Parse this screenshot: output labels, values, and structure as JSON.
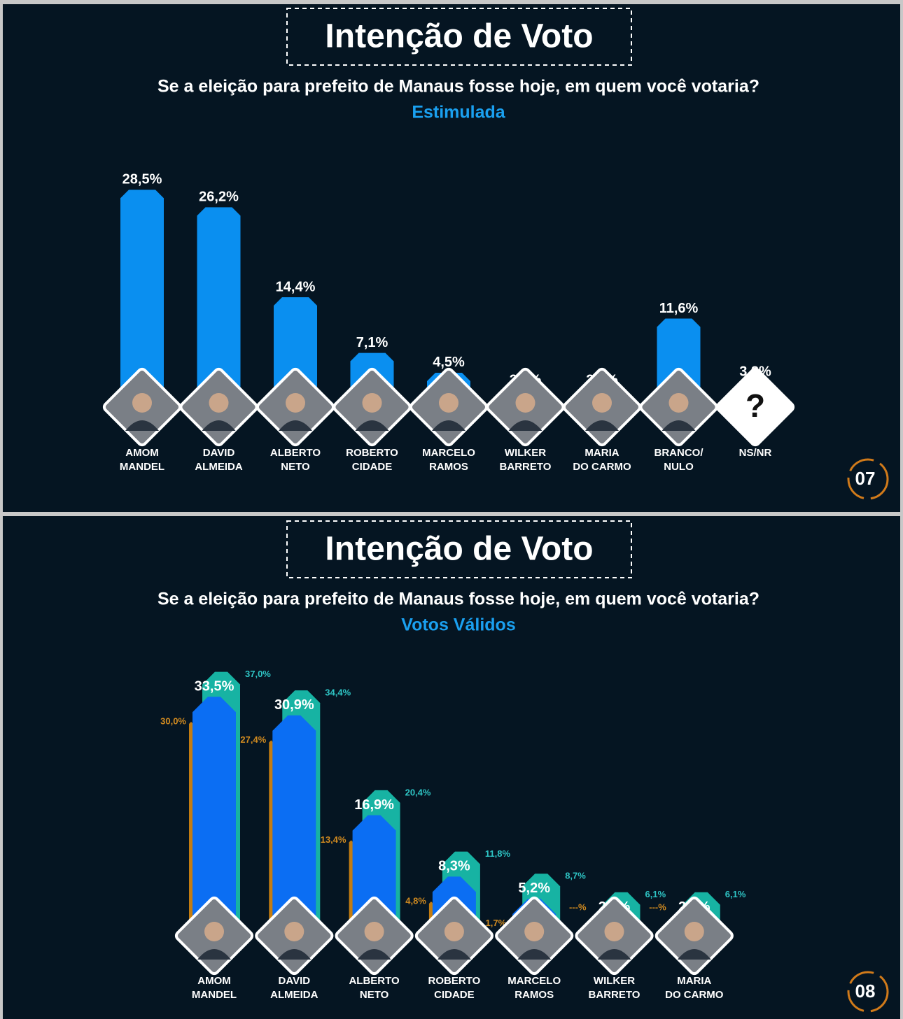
{
  "chart_data": [
    {
      "type": "bar",
      "title": "Intenção de Voto",
      "subtitle": "Se a eleição para prefeito de Manaus fosse hoje, em quem você votaria?",
      "label": "Estimulada",
      "categories": [
        [
          "AMOM",
          "MANDEL"
        ],
        [
          "DAVID",
          "ALMEIDA"
        ],
        [
          "ALBERTO",
          "NETO"
        ],
        [
          "ROBERTO",
          "CIDADE"
        ],
        [
          "MARCELO",
          "RAMOS"
        ],
        [
          "WILKER",
          "BARRETO"
        ],
        [
          "MARIA",
          "DO CARMO"
        ],
        [
          "BRANCO/",
          "NULO"
        ],
        [
          "NS/NR"
        ]
      ],
      "values": [
        28.5,
        26.2,
        14.4,
        7.1,
        4.5,
        2.2,
        2.2,
        11.6,
        3.3
      ],
      "value_labels": [
        "28,5%",
        "26,2%",
        "14,4%",
        "7,1%",
        "4,5%",
        "2,2%",
        "2,2%",
        "11,6%",
        "3,3%"
      ],
      "color": "#0a8ff0",
      "placeholder_icon": "?",
      "page": "07"
    },
    {
      "type": "overlap_bar",
      "title": "Intenção de Voto",
      "subtitle": "Se a eleição para prefeito de Manaus fosse hoje, em quem você votaria?",
      "label": "Votos Válidos",
      "categories": [
        [
          "AMOM",
          "MANDEL"
        ],
        [
          "DAVID",
          "ALMEIDA"
        ],
        [
          "ALBERTO",
          "NETO"
        ],
        [
          "ROBERTO",
          "CIDADE"
        ],
        [
          "MARCELO",
          "RAMOS"
        ],
        [
          "WILKER",
          "BARRETO"
        ],
        [
          "MARIA",
          "DO CARMO"
        ]
      ],
      "series": [
        {
          "color": "#c27c12",
          "values": [
            30.0,
            27.4,
            13.4,
            4.8,
            1.7,
            null,
            null
          ],
          "value_labels": [
            "30,0%",
            "27,4%",
            "13,4%",
            "4,8%",
            "1,7%",
            "---%",
            "---%"
          ]
        },
        {
          "color": "#0b6ef3",
          "values": [
            33.5,
            30.9,
            16.9,
            8.3,
            5.2,
            2.6,
            2.6
          ],
          "value_labels": [
            "33,5%",
            "30,9%",
            "16,9%",
            "8,3%",
            "5,2%",
            "2,6%",
            "2,6%"
          ]
        },
        {
          "color": "#17b3a3",
          "values": [
            37.0,
            34.4,
            20.4,
            11.8,
            8.7,
            6.1,
            6.1
          ],
          "value_labels": [
            "37,0%",
            "34,4%",
            "20,4%",
            "11,8%",
            "8,7%",
            "6,1%",
            "6,1%"
          ]
        }
      ],
      "page": "08"
    }
  ]
}
